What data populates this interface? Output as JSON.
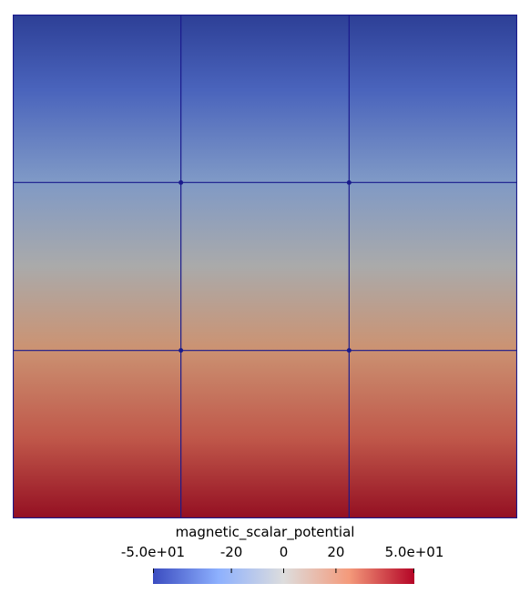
{
  "colormap": {
    "low": "#3b4cc0",
    "mid": "#dddddd",
    "high": "#b40426"
  },
  "mesh": {
    "rows": 3,
    "cols": 3,
    "line_color": "#1a1a8c",
    "field": "magnetic scalar potential varying from high (bottom) to low (top)"
  },
  "legend": {
    "title": "magnetic_scalar_potential",
    "min": -50,
    "max": 50,
    "ticks": [
      {
        "value": -50,
        "label": "-5.0e+01"
      },
      {
        "value": -20,
        "label": "-20"
      },
      {
        "value": 0,
        "label": "0"
      },
      {
        "value": 20,
        "label": "20"
      },
      {
        "value": 50,
        "label": "5.0e+01"
      }
    ]
  }
}
